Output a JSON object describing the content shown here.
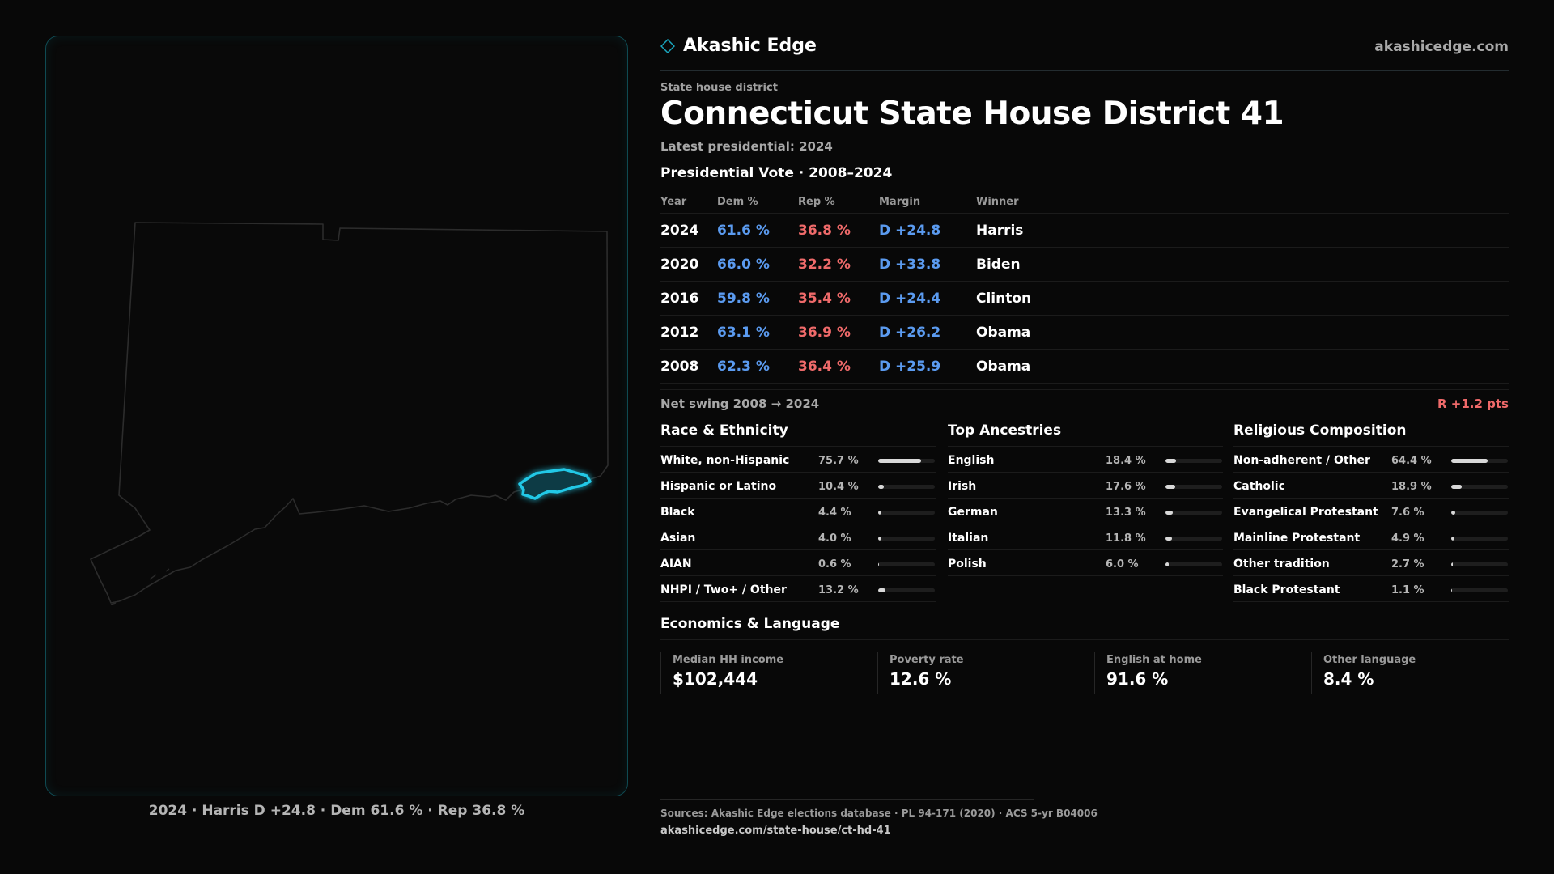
{
  "brand": {
    "name": "Akashic Edge",
    "url": "akashicedge.com"
  },
  "district": {
    "kicker": "State house district",
    "title": "Connecticut State House District 41",
    "latest": "Latest presidential: 2024"
  },
  "presidential": {
    "title": "Presidential Vote · 2008–2024",
    "headers": {
      "year": "Year",
      "dem": "Dem %",
      "rep": "Rep %",
      "margin": "Margin",
      "winner": "Winner"
    },
    "rows": [
      {
        "year": "2024",
        "dem": "61.6 %",
        "rep": "36.8 %",
        "margin": "D +24.8",
        "winner": "Harris"
      },
      {
        "year": "2020",
        "dem": "66.0 %",
        "rep": "32.2 %",
        "margin": "D +33.8",
        "winner": "Biden"
      },
      {
        "year": "2016",
        "dem": "59.8 %",
        "rep": "35.4 %",
        "margin": "D +24.4",
        "winner": "Clinton"
      },
      {
        "year": "2012",
        "dem": "63.1 %",
        "rep": "36.9 %",
        "margin": "D +26.2",
        "winner": "Obama"
      },
      {
        "year": "2008",
        "dem": "62.3 %",
        "rep": "36.4 %",
        "margin": "D +25.9",
        "winner": "Obama"
      }
    ],
    "swing_label": "Net swing 2008 → 2024",
    "swing_value": "R +1.2 pts"
  },
  "race": {
    "title": "Race & Ethnicity",
    "items": [
      {
        "label": "White, non-Hispanic",
        "value": "75.7 %",
        "pct": 75.7
      },
      {
        "label": "Hispanic or Latino",
        "value": "10.4 %",
        "pct": 10.4
      },
      {
        "label": "Black",
        "value": "4.4 %",
        "pct": 4.4
      },
      {
        "label": "Asian",
        "value": "4.0 %",
        "pct": 4.0
      },
      {
        "label": "AIAN",
        "value": "0.6 %",
        "pct": 0.6
      },
      {
        "label": "NHPI / Two+ / Other",
        "value": "13.2 %",
        "pct": 13.2
      }
    ]
  },
  "ancestry": {
    "title": "Top Ancestries",
    "items": [
      {
        "label": "English",
        "value": "18.4 %",
        "pct": 18.4
      },
      {
        "label": "Irish",
        "value": "17.6 %",
        "pct": 17.6
      },
      {
        "label": "German",
        "value": "13.3 %",
        "pct": 13.3
      },
      {
        "label": "Italian",
        "value": "11.8 %",
        "pct": 11.8
      },
      {
        "label": "Polish",
        "value": "6.0 %",
        "pct": 6.0
      }
    ]
  },
  "religion": {
    "title": "Religious Composition",
    "items": [
      {
        "label": "Non-adherent / Other",
        "value": "64.4 %",
        "pct": 64.4
      },
      {
        "label": "Catholic",
        "value": "18.9 %",
        "pct": 18.9
      },
      {
        "label": "Evangelical Protestant",
        "value": "7.6 %",
        "pct": 7.6
      },
      {
        "label": "Mainline Protestant",
        "value": "4.9 %",
        "pct": 4.9
      },
      {
        "label": "Other tradition",
        "value": "2.7 %",
        "pct": 2.7
      },
      {
        "label": "Black Protestant",
        "value": "1.1 %",
        "pct": 1.1
      }
    ]
  },
  "economics": {
    "title": "Economics & Language",
    "cards": [
      {
        "label": "Median HH income",
        "value": "$102,444"
      },
      {
        "label": "Poverty rate",
        "value": "12.6 %"
      },
      {
        "label": "English at home",
        "value": "91.6 %"
      },
      {
        "label": "Other language",
        "value": "8.4 %"
      }
    ]
  },
  "map": {
    "caption": "2024 · Harris D +24.8 · Dem 61.6 % · Rep 36.8 %",
    "district_color": "#22c8e6",
    "state_outline_color": "#2c2c2c"
  },
  "footer": {
    "sources": "Sources: Akashic Edge elections database · PL 94-171 (2020) · ACS 5-yr B04006",
    "url": "akashicedge.com/state-house/ct-hd-41"
  },
  "colors": {
    "dem": "#5b9bf0",
    "rep": "#ef6a6a",
    "accent": "#22c8e6"
  }
}
